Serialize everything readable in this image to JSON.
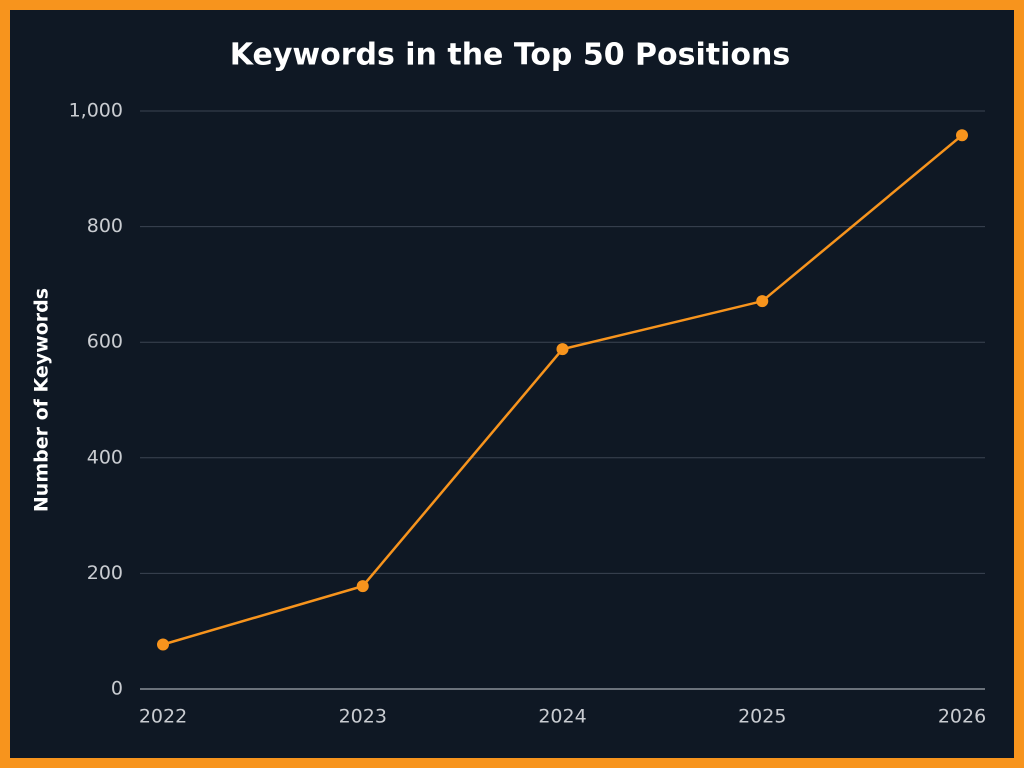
{
  "chart_data": {
    "type": "line",
    "title": "Keywords in the Top 50 Positions",
    "y_label": "Number of Keywords",
    "categories": [
      "2022",
      "2023",
      "2024",
      "2025",
      "2026"
    ],
    "values": [
      77,
      178,
      588,
      671,
      958
    ],
    "color": "#f7941d",
    "ylim": [
      0,
      1000
    ],
    "yticks": [
      0,
      200,
      400,
      600,
      800,
      {
        "value": 1000,
        "label": "1,000"
      }
    ],
    "grid": true
  }
}
